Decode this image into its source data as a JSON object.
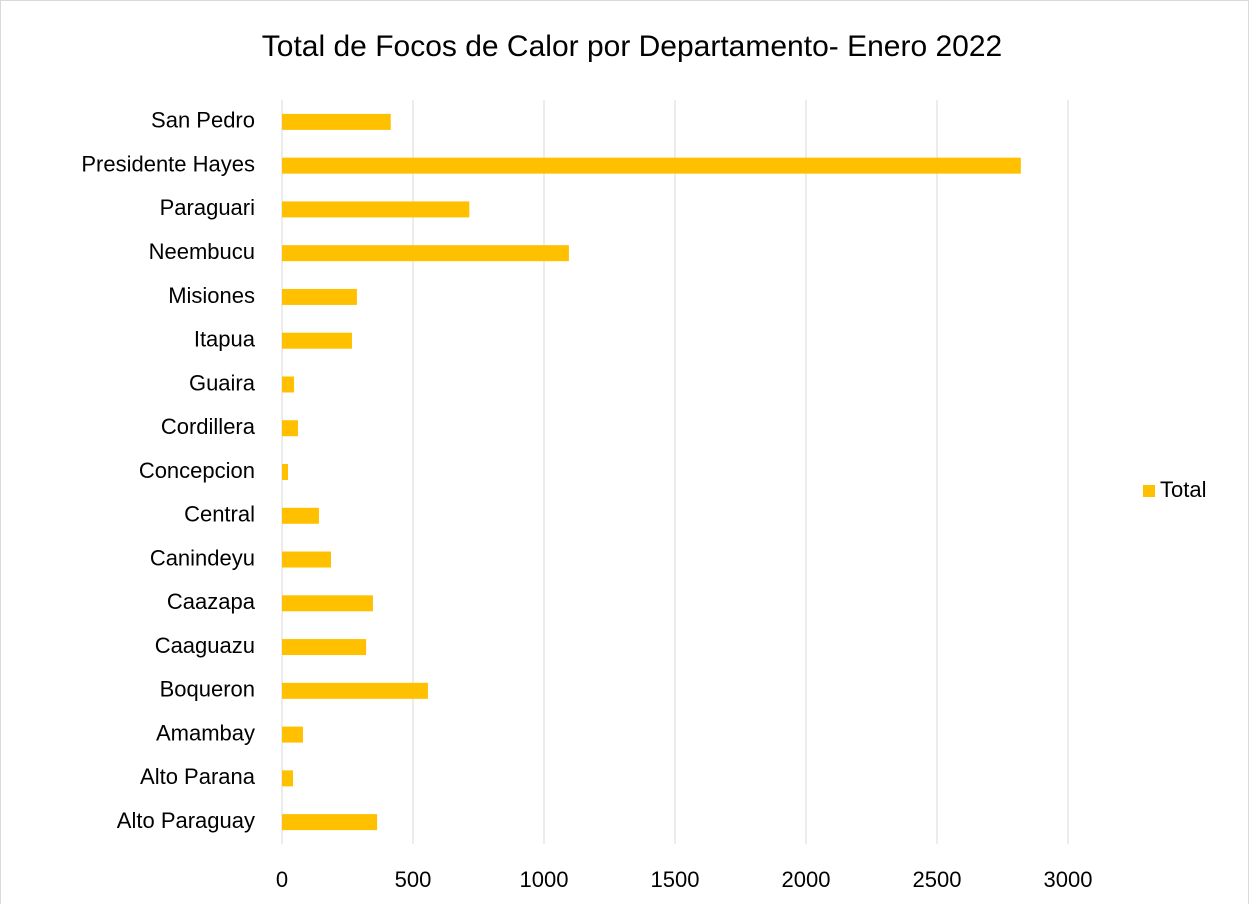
{
  "chart_data": {
    "type": "bar",
    "orientation": "horizontal",
    "title": "Total de Focos de Calor por Departamento- Enero 2022",
    "categories": [
      "San Pedro",
      "Presidente Hayes",
      "Paraguari",
      "Neembucu",
      "Misiones",
      "Itapua",
      "Guaira",
      "Cordillera",
      "Concepcion",
      "Central",
      "Canindeyu",
      "Caazapa",
      "Caaguazu",
      "Boqueron",
      "Amambay",
      "Alto Parana",
      "Alto Paraguay"
    ],
    "series": [
      {
        "name": "Total",
        "color": "#ffc000",
        "values": [
          415,
          2820,
          715,
          1095,
          286,
          267,
          46,
          61,
          23,
          141,
          187,
          347,
          321,
          557,
          80,
          42,
          363
        ]
      }
    ],
    "xlim": [
      0,
      3000
    ],
    "xticks": [
      0,
      500,
      1000,
      1500,
      2000,
      2500,
      3000
    ],
    "grid": true,
    "legend": "right"
  }
}
